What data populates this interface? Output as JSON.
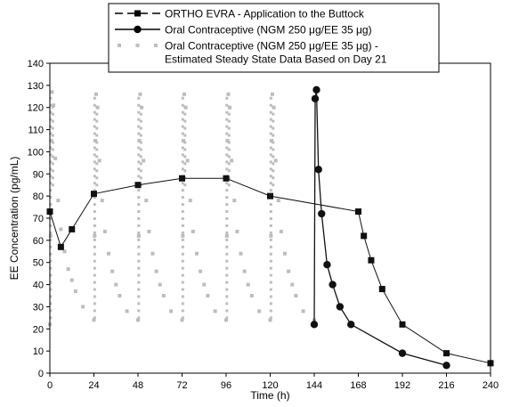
{
  "chart_data": {
    "type": "line",
    "title": "",
    "xlabel": "Time (h)",
    "ylabel": "EE Concentration (pg/mL)",
    "xlim": [
      0,
      240
    ],
    "ylim": [
      0,
      140
    ],
    "x_ticks": [
      0,
      24,
      48,
      72,
      96,
      120,
      144,
      168,
      192,
      216,
      240
    ],
    "y_ticks": [
      0,
      10,
      20,
      30,
      40,
      50,
      60,
      70,
      80,
      90,
      100,
      110,
      120,
      130,
      140
    ],
    "grid": false,
    "legend_position": "top",
    "colors": {
      "ortho": "#111111",
      "oral": "#111111",
      "estimated": "#bdbdbd",
      "frame": "#000000"
    },
    "series": [
      {
        "name": "ORTHO EVRA - Application to the Buttock",
        "style": "dashed-line-square-marker",
        "x": [
          0,
          6,
          12,
          24,
          48,
          72,
          96,
          120,
          168,
          171,
          175,
          181,
          192,
          216,
          240
        ],
        "y": [
          73,
          57,
          65,
          81,
          85,
          88,
          88,
          80,
          73,
          62,
          51,
          38,
          22,
          9,
          4.5
        ]
      },
      {
        "name": "Oral Contraceptive (NGM 250 μg/EE 35 μg)",
        "style": "solid-line-circle-marker",
        "x": [
          144,
          144.5,
          145.2,
          146.3,
          148,
          151,
          154,
          158,
          164,
          192,
          216
        ],
        "y": [
          22,
          124,
          128,
          92,
          72,
          49,
          40,
          30,
          22,
          9,
          3.5
        ]
      },
      {
        "name": "Oral Contraceptive (NGM 250 μg/EE 35 μg) - Estimated Steady State Data Based on Day 21",
        "style": "dotted-gray-squares",
        "x": [
          0,
          0.4,
          0.8,
          1.2,
          2,
          3,
          4.5,
          6,
          8,
          10,
          12,
          14,
          18,
          24,
          24.4,
          24.8,
          25.2,
          26,
          27,
          28.5,
          30,
          32,
          34,
          36,
          38,
          42,
          48,
          48.4,
          48.8,
          49.2,
          50,
          51,
          52.5,
          54,
          56,
          58,
          60,
          62,
          66,
          72,
          72.4,
          72.8,
          73.2,
          74,
          75,
          76.5,
          78,
          80,
          82,
          84,
          86,
          90,
          96,
          96.4,
          96.8,
          97.2,
          98,
          99,
          100.5,
          102,
          104,
          106,
          108,
          110,
          114,
          120,
          120.4,
          120.8,
          121.2,
          122,
          123,
          124.5,
          126,
          128,
          130,
          132,
          134,
          138,
          144
        ],
        "y": [
          22,
          62,
          105,
          127,
          121,
          97,
          78,
          65,
          55,
          47,
          42,
          37,
          30,
          24,
          62,
          105,
          126,
          120,
          96,
          78,
          64,
          54,
          46,
          40,
          35,
          28,
          24,
          62,
          105,
          126,
          120,
          96,
          78,
          64,
          54,
          46,
          40,
          35,
          28,
          24,
          62,
          105,
          126,
          120,
          96,
          78,
          64,
          54,
          46,
          40,
          35,
          28,
          24,
          62,
          105,
          126,
          120,
          96,
          78,
          64,
          54,
          46,
          40,
          35,
          28,
          24,
          62,
          105,
          126,
          120,
          96,
          78,
          64,
          54,
          46,
          40,
          35,
          28,
          24
        ]
      }
    ],
    "legend": [
      {
        "key": "ortho",
        "line1": "ORTHO EVRA - Application to the Buttock",
        "line2": ""
      },
      {
        "key": "oral",
        "line1": "Oral Contraceptive (NGM 250 μg/EE 35 μg)",
        "line2": ""
      },
      {
        "key": "estimated",
        "line1": "Oral Contraceptive (NGM 250 μg/EE 35 μg) -",
        "line2": "Estimated Steady State Data Based on Day 21"
      }
    ]
  }
}
